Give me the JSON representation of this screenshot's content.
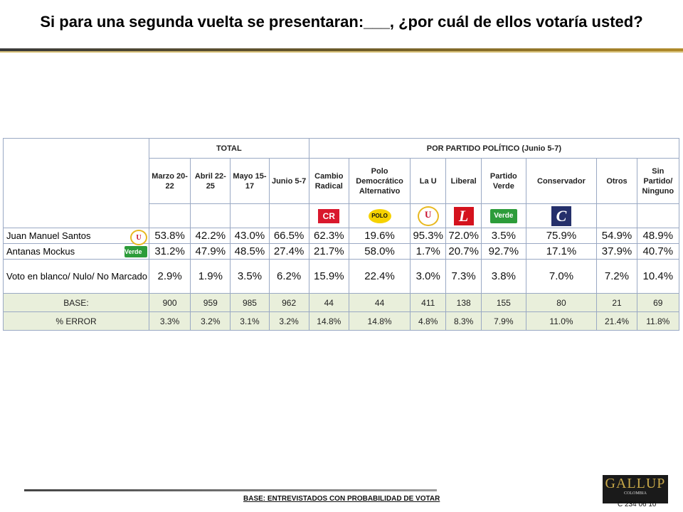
{
  "title": "Si para una segunda vuelta se presentaran:___, ¿por cuál de ellos votaría usted?",
  "table": {
    "group_total": "TOTAL",
    "group_party": "POR PARTIDO POLÍTICO (Junio 5-7)",
    "columns": [
      {
        "label": "Marzo 20-22"
      },
      {
        "label": "Abril 22-25"
      },
      {
        "label": "Mayo 15-17"
      },
      {
        "label": "Junio 5-7"
      },
      {
        "label": "Cambio Radical",
        "logo": "CR"
      },
      {
        "label": "Polo Democrático Alternativo",
        "logo": "POLO"
      },
      {
        "label": "La U",
        "logo": "U"
      },
      {
        "label": "Liberal",
        "logo": "L"
      },
      {
        "label": "Partido Verde",
        "logo": "Verde"
      },
      {
        "label": "Conservador",
        "logo": "C"
      },
      {
        "label": "Otros"
      },
      {
        "label": "Sin Partido/ Ninguno"
      }
    ],
    "rows": [
      {
        "label": "Juan Manuel Santos",
        "badge": "U",
        "values": [
          "53.8%",
          "42.2%",
          "43.0%",
          "66.5%",
          "62.3%",
          "19.6%",
          "95.3%",
          "72.0%",
          "3.5%",
          "75.9%",
          "54.9%",
          "48.9%"
        ]
      },
      {
        "label": "Antanas Mockus",
        "badge": "Verde",
        "values": [
          "31.2%",
          "47.9%",
          "48.5%",
          "27.4%",
          "21.7%",
          "58.0%",
          "1.7%",
          "20.7%",
          "92.7%",
          "17.1%",
          "37.9%",
          "40.7%"
        ]
      },
      {
        "label": "Voto en blanco/ Nulo/ No Marcado",
        "values": [
          "2.9%",
          "1.9%",
          "3.5%",
          "6.2%",
          "15.9%",
          "22.4%",
          "3.0%",
          "7.3%",
          "3.8%",
          "7.0%",
          "7.2%",
          "10.4%"
        ]
      }
    ],
    "base": {
      "label": "BASE:",
      "values": [
        "900",
        "959",
        "985",
        "962",
        "44",
        "44",
        "411",
        "138",
        "155",
        "80",
        "21",
        "69"
      ]
    },
    "error": {
      "label": "% ERROR",
      "values": [
        "3.3%",
        "3.2%",
        "3.1%",
        "3.2%",
        "14.8%",
        "14.8%",
        "4.8%",
        "8.3%",
        "7.9%",
        "11.0%",
        "21.4%",
        "11.8%"
      ]
    }
  },
  "footnote": "BASE: ENTREVISTADOS CON PROBABILIDAD DE VOTAR",
  "brand": {
    "name": "GALLUP",
    "country": "COLOMBIA",
    "color": "#c8a848"
  },
  "code": "C 234 06 10",
  "colors": {
    "row_highlight": "#e9efdb",
    "border": "#9aa9c4"
  }
}
